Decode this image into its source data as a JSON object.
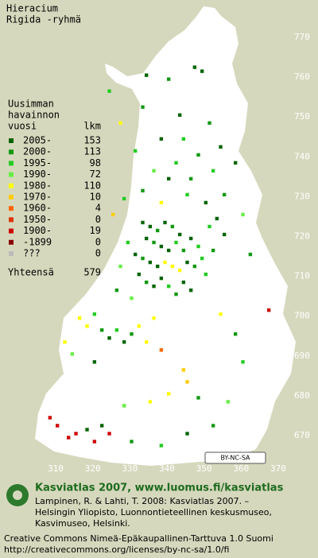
{
  "title": [
    "Hieracium",
    "Rigida -ryhmä"
  ],
  "legend": {
    "header": [
      "Uusimman",
      "havainnon",
      "vuosi"
    ],
    "count_header": "lkm",
    "rows": [
      {
        "label": "2005-",
        "count": 153,
        "color": "#006400"
      },
      {
        "label": "2000-",
        "count": 113,
        "color": "#119911"
      },
      {
        "label": "1995-",
        "count": 98,
        "color": "#22cc22"
      },
      {
        "label": "1990-",
        "count": 72,
        "color": "#66ee44"
      },
      {
        "label": "1980-",
        "count": 110,
        "color": "#ffff00"
      },
      {
        "label": "1970-",
        "count": 10,
        "color": "#ffcc00"
      },
      {
        "label": "1960-",
        "count": 4,
        "color": "#ff6600"
      },
      {
        "label": "1950-",
        "count": 0,
        "color": "#dd3300"
      },
      {
        "label": "1900-",
        "count": 19,
        "color": "#cc0000"
      },
      {
        "label": "-1899",
        "count": 0,
        "color": "#880000"
      },
      {
        "label": "???",
        "count": 0,
        "color": "#bbbbbb"
      }
    ],
    "total_label": "Yhteensä",
    "total": 579
  },
  "xlim": [
    310,
    370
  ],
  "ylim": [
    670,
    770
  ],
  "xticks": [
    310,
    320,
    330,
    340,
    350,
    360,
    370
  ],
  "yticks": [
    770,
    760,
    750,
    740,
    730,
    720,
    710,
    700,
    690,
    680,
    670
  ],
  "squares": [
    [
      347,
      762,
      0
    ],
    [
      349,
      761,
      0
    ],
    [
      340,
      759,
      1
    ],
    [
      334,
      760,
      0
    ],
    [
      324,
      756,
      2
    ],
    [
      333,
      752,
      1
    ],
    [
      343,
      750,
      0
    ],
    [
      351,
      748,
      1
    ],
    [
      327,
      748,
      4
    ],
    [
      344,
      744,
      2
    ],
    [
      338,
      744,
      0
    ],
    [
      331,
      741,
      2
    ],
    [
      348,
      740,
      1
    ],
    [
      354,
      742,
      0
    ],
    [
      342,
      738,
      2
    ],
    [
      336,
      736,
      3
    ],
    [
      352,
      736,
      2
    ],
    [
      346,
      734,
      1
    ],
    [
      340,
      734,
      0
    ],
    [
      358,
      738,
      0
    ],
    [
      333,
      731,
      1
    ],
    [
      328,
      729,
      2
    ],
    [
      345,
      730,
      2
    ],
    [
      350,
      728,
      0
    ],
    [
      355,
      730,
      1
    ],
    [
      338,
      728,
      4
    ],
    [
      325,
      725,
      5
    ],
    [
      333,
      723,
      0
    ],
    [
      335,
      722,
      0
    ],
    [
      337,
      721,
      1
    ],
    [
      339,
      723,
      0
    ],
    [
      341,
      722,
      1
    ],
    [
      343,
      720,
      0
    ],
    [
      334,
      719,
      0
    ],
    [
      336,
      718,
      1
    ],
    [
      338,
      717,
      0
    ],
    [
      340,
      716,
      0
    ],
    [
      342,
      718,
      2
    ],
    [
      344,
      716,
      1
    ],
    [
      346,
      719,
      0
    ],
    [
      348,
      717,
      2
    ],
    [
      331,
      715,
      0
    ],
    [
      333,
      714,
      1
    ],
    [
      335,
      713,
      0
    ],
    [
      337,
      712,
      0
    ],
    [
      339,
      713,
      4
    ],
    [
      341,
      712,
      4
    ],
    [
      343,
      711,
      4
    ],
    [
      345,
      713,
      0
    ],
    [
      347,
      712,
      1
    ],
    [
      349,
      714,
      2
    ],
    [
      332,
      710,
      0
    ],
    [
      334,
      708,
      1
    ],
    [
      336,
      707,
      0
    ],
    [
      338,
      709,
      0
    ],
    [
      340,
      707,
      2
    ],
    [
      342,
      705,
      1
    ],
    [
      344,
      708,
      0
    ],
    [
      346,
      706,
      0
    ],
    [
      350,
      710,
      2
    ],
    [
      330,
      704,
      3
    ],
    [
      352,
      716,
      1
    ],
    [
      355,
      720,
      0
    ],
    [
      351,
      722,
      2
    ],
    [
      353,
      724,
      0
    ],
    [
      360,
      725,
      3
    ],
    [
      362,
      715,
      1
    ],
    [
      329,
      718,
      2
    ],
    [
      327,
      712,
      3
    ],
    [
      326,
      706,
      1
    ],
    [
      316,
      699,
      4
    ],
    [
      318,
      697,
      4
    ],
    [
      320,
      700,
      2
    ],
    [
      322,
      696,
      1
    ],
    [
      324,
      694,
      0
    ],
    [
      326,
      696,
      2
    ],
    [
      328,
      693,
      0
    ],
    [
      330,
      695,
      1
    ],
    [
      332,
      697,
      4
    ],
    [
      334,
      693,
      4
    ],
    [
      336,
      699,
      4
    ],
    [
      312,
      693,
      4
    ],
    [
      314,
      690,
      3
    ],
    [
      320,
      688,
      0
    ],
    [
      338,
      691,
      6
    ],
    [
      354,
      700,
      4
    ],
    [
      367,
      701,
      8
    ],
    [
      344,
      686,
      5
    ],
    [
      345,
      683,
      5
    ],
    [
      340,
      680,
      4
    ],
    [
      335,
      678,
      4
    ],
    [
      348,
      679,
      1
    ],
    [
      328,
      677,
      3
    ],
    [
      322,
      672,
      0
    ],
    [
      318,
      671,
      0
    ],
    [
      315,
      670,
      8
    ],
    [
      313,
      669,
      8
    ],
    [
      320,
      668,
      8
    ],
    [
      324,
      670,
      8
    ],
    [
      310,
      672,
      8
    ],
    [
      308,
      674,
      8
    ],
    [
      330,
      668,
      1
    ],
    [
      338,
      667,
      2
    ],
    [
      345,
      670,
      0
    ],
    [
      352,
      672,
      1
    ],
    [
      356,
      678,
      3
    ],
    [
      360,
      688,
      2
    ],
    [
      358,
      695,
      1
    ]
  ],
  "badge": "BY-NC-SA",
  "footer": {
    "site": "Kasviatlas 2007, www.luomus.fi/kasviatlas",
    "citation": [
      "Lampinen, R. & Lahti, T. 2008: Kasviatlas 2007. –",
      "Helsingin Yliopisto, Luonnontieteellinen keskusmuseo,",
      "Kasvimuseo, Helsinki."
    ],
    "license": [
      "Creative Commons Nimeä-Epäkaupallinen-Tarttuva 1.0 Suomi",
      "http://creativecommons.org/licenses/by-nc-sa/1.0/fi"
    ]
  }
}
